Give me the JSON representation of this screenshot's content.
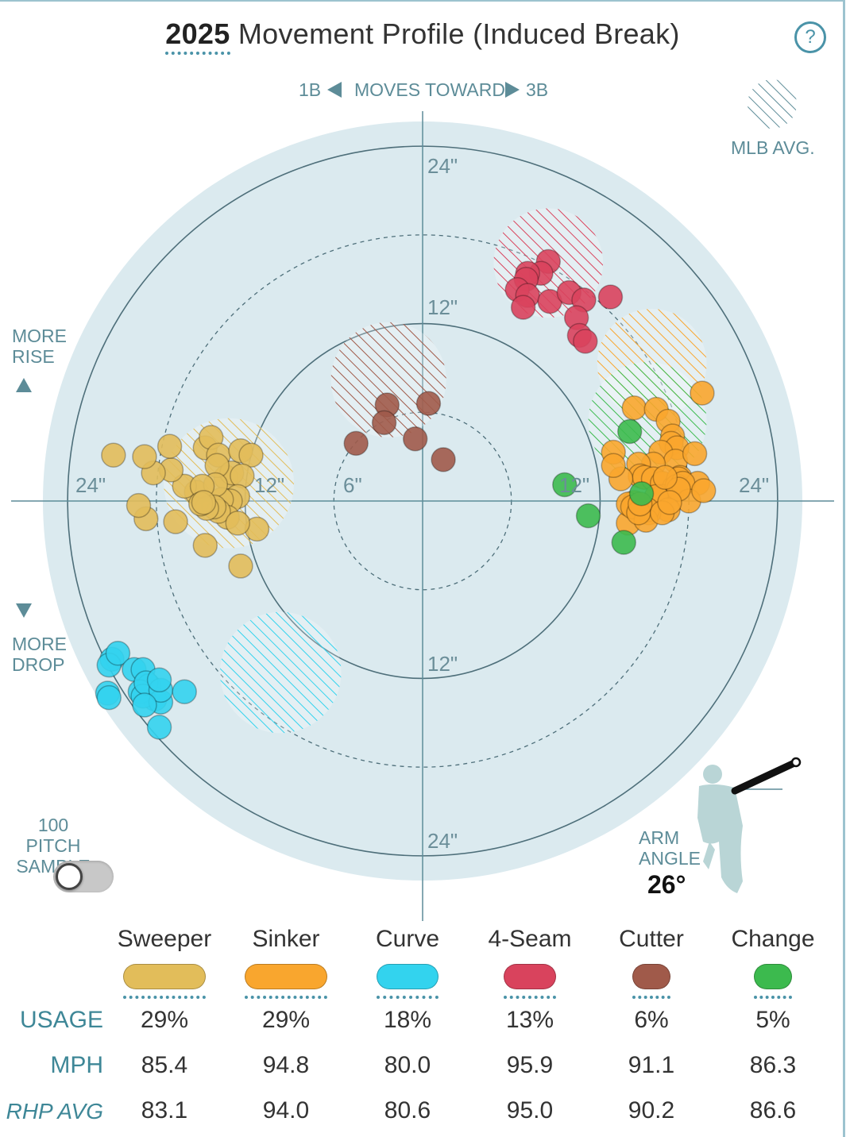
{
  "header": {
    "year": "2025",
    "title_rest": "Movement Profile (Induced Break)",
    "help_icon": "?"
  },
  "direction": {
    "left": "1B",
    "center": "MOVES TOWARD",
    "right": "3B"
  },
  "legend": {
    "mlb_avg_label": "MLB AVG."
  },
  "side_labels": {
    "rise_line1": "MORE",
    "rise_line2": "RISE",
    "drop_line1": "MORE",
    "drop_line2": "DROP"
  },
  "sample": {
    "line1": "100 PITCH",
    "line2": "SAMPLE",
    "toggle_on": false
  },
  "arm_angle": {
    "line1": "ARM",
    "line2": "ANGLE",
    "value": "26°",
    "degrees": 26
  },
  "axis_labels": {
    "top_outer": "24\"",
    "top_inner": "12\"",
    "bottom_inner": "12\"",
    "bottom_outer": "24\"",
    "left_outer": "24\"",
    "left_inner": "12\"",
    "left_six": "6\"",
    "right_inner": "12\"",
    "right_outer": "24\""
  },
  "table": {
    "row_labels": {
      "usage": "USAGE",
      "mph": "MPH",
      "rhp_avg": "RHP AVG"
    },
    "pitches": [
      {
        "name": "Sweeper",
        "color": "#e2bd5a",
        "usage": "29%",
        "mph": "85.4",
        "rhp_avg": "83.1"
      },
      {
        "name": "Sinker",
        "color": "#f9a62e",
        "usage": "29%",
        "mph": "94.8",
        "rhp_avg": "94.0"
      },
      {
        "name": "Curve",
        "color": "#33d3ee",
        "usage": "18%",
        "mph": "80.0",
        "rhp_avg": "80.6"
      },
      {
        "name": "4-Seam",
        "color": "#d9435d",
        "usage": "13%",
        "mph": "95.9",
        "rhp_avg": "95.0"
      },
      {
        "name": "Cutter",
        "color": "#a05a4a",
        "usage": "6%",
        "mph": "91.1",
        "rhp_avg": "90.2"
      },
      {
        "name": "Change",
        "color": "#3cba4e",
        "usage": "5%",
        "mph": "86.3",
        "rhp_avg": "86.6"
      }
    ]
  },
  "chart_data": {
    "type": "scatter",
    "title": "2025 Movement Profile (Induced Break)",
    "x_axis": "horizontal break (in), 1B to 3B",
    "y_axis": "induced vertical break (in)",
    "xlim": [
      -26,
      26
    ],
    "ylim": [
      -26,
      26
    ],
    "rings_inches": [
      6,
      12,
      18,
      24
    ],
    "series": [
      {
        "name": "Sweeper",
        "color": "#e2bd5a",
        "mlb_avg": {
          "x": -13.1,
          "y": 1.2,
          "r": 4.4
        },
        "points": [
          [
            -14.7,
            3.6
          ],
          [
            -14.3,
            4.3
          ],
          [
            -13.8,
            3.1
          ],
          [
            -13.3,
            1.6
          ],
          [
            -12.9,
            1.9
          ],
          [
            -13.9,
            2.4
          ],
          [
            -12.3,
            3.4
          ],
          [
            -11.6,
            3.1
          ],
          [
            -12.2,
            1.7
          ],
          [
            -12.5,
            0.3
          ],
          [
            -13.0,
            0.0
          ],
          [
            -13.6,
            0.1
          ],
          [
            -15.3,
            0.6
          ],
          [
            -14.0,
            1.1
          ],
          [
            -16.1,
            1.0
          ],
          [
            -17.0,
            2.1
          ],
          [
            -18.2,
            1.9
          ],
          [
            -17.1,
            3.7
          ],
          [
            -18.8,
            3.0
          ],
          [
            -20.9,
            3.1
          ],
          [
            -14.9,
            1.0
          ],
          [
            -13.2,
            -1.1
          ],
          [
            -13.8,
            -0.7
          ],
          [
            -14.1,
            -0.4
          ],
          [
            -14.6,
            -0.5
          ],
          [
            -15.0,
            -0.2
          ],
          [
            -16.7,
            -1.4
          ],
          [
            -18.7,
            -1.2
          ],
          [
            -19.2,
            -0.3
          ],
          [
            -11.2,
            -1.9
          ],
          [
            -12.5,
            -1.5
          ],
          [
            -14.7,
            -3.0
          ],
          [
            -12.3,
            -4.4
          ],
          [
            -14.8,
            -0.1
          ]
        ]
      },
      {
        "name": "Sinker",
        "color": "#f9a62e",
        "mlb_avg": {
          "x": 15.5,
          "y": 9.3,
          "r": 3.7
        },
        "points": [
          [
            18.9,
            7.3
          ],
          [
            14.3,
            6.3
          ],
          [
            15.8,
            6.2
          ],
          [
            16.6,
            5.4
          ],
          [
            16.9,
            4.4
          ],
          [
            16.8,
            3.9
          ],
          [
            17.2,
            3.6
          ],
          [
            16.1,
            3.3
          ],
          [
            17.1,
            2.7
          ],
          [
            18.4,
            3.2
          ],
          [
            15.6,
            2.5
          ],
          [
            14.6,
            2.5
          ],
          [
            14.7,
            1.7
          ],
          [
            15.0,
            1.6
          ],
          [
            15.6,
            1.5
          ],
          [
            16.2,
            1.2
          ],
          [
            17.0,
            0.9
          ],
          [
            16.2,
            0.3
          ],
          [
            17.4,
            1.6
          ],
          [
            17.3,
            1.5
          ],
          [
            17.2,
            1.0
          ],
          [
            18.6,
            1.2
          ],
          [
            17.6,
            1.2
          ],
          [
            18.0,
            0.0
          ],
          [
            19.0,
            0.7
          ],
          [
            17.3,
            0.8
          ],
          [
            15.8,
            0.3
          ],
          [
            16.6,
            -0.6
          ],
          [
            15.3,
            -0.8
          ],
          [
            13.4,
            1.5
          ],
          [
            12.9,
            3.3
          ],
          [
            12.9,
            2.4
          ],
          [
            13.9,
            -1.5
          ],
          [
            15.2,
            -0.6
          ],
          [
            14.3,
            -0.1
          ],
          [
            13.9,
            -0.2
          ],
          [
            14.2,
            -0.4
          ],
          [
            15.1,
            -1.3
          ],
          [
            14.6,
            -0.8
          ],
          [
            16.2,
            -0.8
          ],
          [
            14.7,
            -0.2
          ],
          [
            16.4,
            1.6
          ],
          [
            16.7,
            -0.1
          ]
        ]
      },
      {
        "name": "Curve",
        "color": "#33d3ee",
        "mlb_avg": {
          "x": -9.6,
          "y": -11.6,
          "r": 4.1
        },
        "points": [
          [
            -21.0,
            -10.7
          ],
          [
            -21.2,
            -11.1
          ],
          [
            -20.6,
            -10.3
          ],
          [
            -19.5,
            -11.4
          ],
          [
            -18.9,
            -11.4
          ],
          [
            -18.5,
            -12.5
          ],
          [
            -18.1,
            -13.4
          ],
          [
            -19.1,
            -12.9
          ],
          [
            -18.9,
            -13.2
          ],
          [
            -18.7,
            -12.3
          ],
          [
            -17.7,
            -13.6
          ],
          [
            -17.7,
            -12.8
          ],
          [
            -17.8,
            -12.1
          ],
          [
            -21.3,
            -13.0
          ],
          [
            -21.2,
            -13.3
          ],
          [
            -16.1,
            -12.9
          ],
          [
            -17.8,
            -15.3
          ],
          [
            -18.8,
            -13.8
          ]
        ]
      },
      {
        "name": "4-Seam",
        "color": "#d9435d",
        "mlb_avg": {
          "x": 8.5,
          "y": 16.1,
          "r": 3.7
        },
        "points": [
          [
            8.5,
            16.2
          ],
          [
            8.0,
            15.4
          ],
          [
            7.1,
            15.4
          ],
          [
            7.0,
            15.0
          ],
          [
            6.4,
            14.3
          ],
          [
            7.1,
            13.9
          ],
          [
            8.6,
            13.5
          ],
          [
            9.9,
            14.1
          ],
          [
            10.9,
            13.6
          ],
          [
            10.4,
            12.4
          ],
          [
            10.6,
            11.2
          ],
          [
            11.0,
            10.8
          ],
          [
            12.7,
            13.8
          ],
          [
            6.8,
            13.1
          ]
        ]
      },
      {
        "name": "Cutter",
        "color": "#a05a4a",
        "mlb_avg": {
          "x": -2.3,
          "y": 8.2,
          "r": 3.9
        },
        "points": [
          [
            -2.4,
            6.5
          ],
          [
            -2.6,
            5.3
          ],
          [
            0.4,
            6.6
          ],
          [
            -0.5,
            4.2
          ],
          [
            -4.5,
            3.9
          ],
          [
            1.4,
            2.8
          ]
        ]
      },
      {
        "name": "Change",
        "color": "#3cba4e",
        "mlb_avg": {
          "x": 15.2,
          "y": 5.4,
          "r": 4.0
        },
        "points": [
          [
            14.0,
            4.7
          ],
          [
            9.6,
            1.1
          ],
          [
            11.2,
            -1.0
          ],
          [
            13.6,
            -2.8
          ],
          [
            14.8,
            0.5
          ]
        ]
      }
    ]
  }
}
